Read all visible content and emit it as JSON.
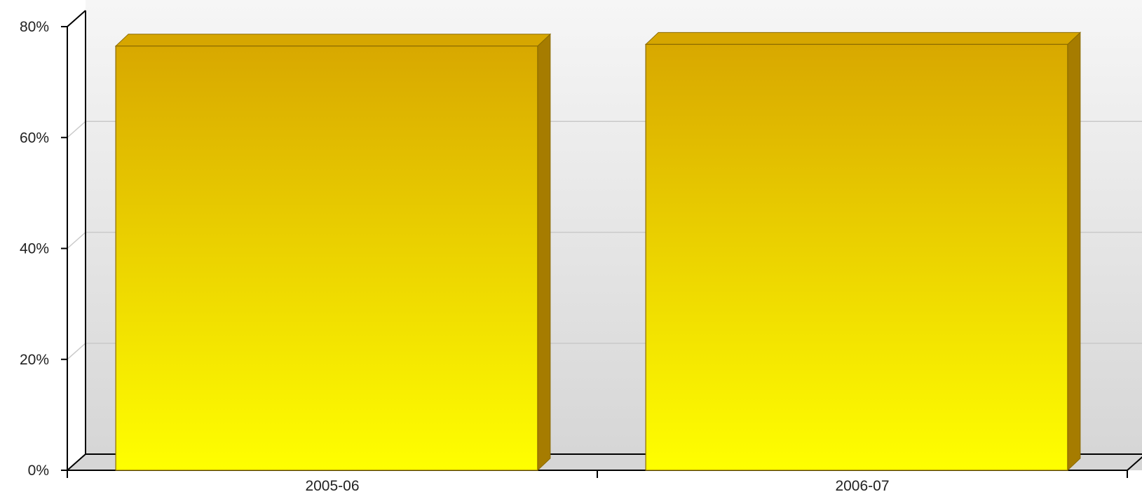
{
  "chart_data": {
    "type": "bar",
    "title": "",
    "xlabel": "",
    "ylabel": "",
    "categories": [
      "2005-06",
      "2006-07"
    ],
    "series": [
      {
        "values": [
          76.5,
          76.8
        ]
      }
    ],
    "ylim": [
      0,
      80
    ],
    "y_ticks": [
      0,
      20,
      40,
      60,
      80
    ],
    "y_tick_labels": [
      "0%",
      "20%",
      "40%",
      "60%",
      "80%"
    ],
    "grid": true,
    "legend": "none",
    "style": "3d",
    "colors": {
      "bar_top": "#D8A800",
      "bar_bottom": "#FFFF00",
      "bar_side": "#A67C00",
      "bar_cap": "#D6A600",
      "bar_outline": "#8A6A00",
      "background_top": "#F6F6F6",
      "background_bottom": "#D6D6D6",
      "gridline": "#C9C9C9",
      "axis": "#000000"
    }
  }
}
